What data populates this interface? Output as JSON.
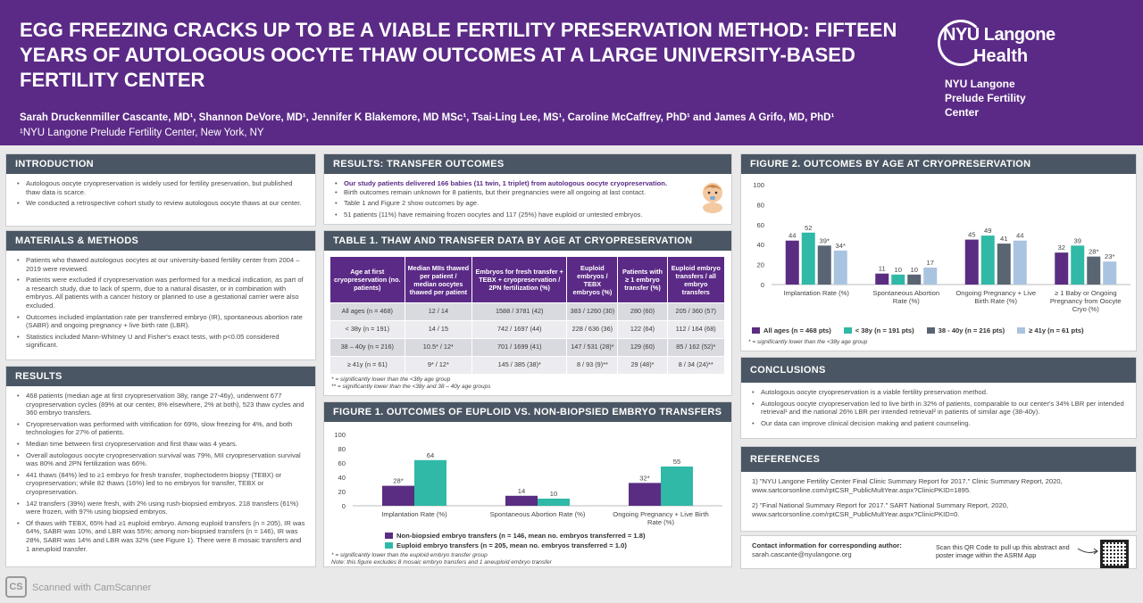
{
  "header": {
    "title": "EGG FREEZING CRACKS UP TO BE A VIABLE FERTILITY PRESERVATION METHOD: FIFTEEN YEARS OF AUTOLOGOUS OOCYTE THAW OUTCOMES AT A LARGE UNIVERSITY-BASED FERTILITY CENTER",
    "authors": "Sarah Druckenmiller Cascante, MD¹, Shannon DeVore, MD¹, Jennifer K Blakemore, MD MSc¹, Tsai-Ling Lee, MS¹, Caroline McCaffrey, PhD¹ and James A Grifo, MD, PhD¹",
    "affiliation": "¹NYU Langone Prelude Fertility Center, New York, NY",
    "logo_line1": "NYU Langone",
    "logo_line2": "Health",
    "logo_sub": "NYU Langone Prelude Fertility Center"
  },
  "intro": {
    "heading": "INTRODUCTION",
    "items": [
      "Autologous oocyte cryopreservation is widely used for fertility preservation, but published thaw data is scarce.",
      "We conducted a retrospective cohort study to review autologous oocyte thaws at our center."
    ]
  },
  "methods": {
    "heading": "MATERIALS & METHODS",
    "items": [
      "Patients who thawed autologous oocytes at our university-based fertility center from 2004 – 2019 were reviewed.",
      "Patients were excluded if cryopreservation was performed for a medical indication, as part of a research study, due to lack of sperm, due to a natural disaster, or in combination with embryos. All patients with a cancer history or planned to use a gestational carrier were also excluded.",
      "Outcomes included implantation rate per transferred embryo (IR), spontaneous abortion rate (SABR) and ongoing pregnancy + live birth rate (LBR).",
      "Statistics included Mann-Whitney U and Fisher's exact tests, with p<0.05 considered significant."
    ]
  },
  "results": {
    "heading": "RESULTS",
    "items": [
      "468 patients (median age at first cryopreservation 38y, range 27-46y), underwent 677 cryopreservation cycles (89% at our center, 8% elsewhere, 2% at both), 523 thaw cycles and 360 embryo transfers.",
      "Cryopreservation was performed with vitrification for 69%, slow freezing for 4%, and both technologies for 27% of patients.",
      "Median time between first cryopreservation and first thaw was 4 years.",
      "Overall autologous oocyte cryopreservation survival was 79%, MII cryopreservation survival was 80% and 2PN fertilization was 66%.",
      "441 thaws (84%) led to ≥1 embryo for fresh transfer, trophectoderm biopsy (TEBX) or cryopreservation; while 82 thaws (16%) led to no embryos for transfer, TEBX or cryopreservation.",
      "142 transfers (39%) were fresh, with 2% using rush-biopsied embryos. 218 transfers (61%) were frozen, with 97% using biopsied embryos.",
      "Of thaws with TEBX, 65% had ≥1 euploid embryo. Among euploid transfers (n = 205), IR was 64%, SABR was 10%, and LBR was 55%; among non-biopsied transfers (n = 146), IR was 28%, SABR was 14% and LBR was 32% (see Figure 1). There were 8 mosaic transfers and 1 aneuploid transfer."
    ]
  },
  "transfer": {
    "heading": "RESULTS: TRANSFER OUTCOMES",
    "items": [
      "Our study patients delivered 166 babies (11 twin, 1 triplet) from autologous oocyte cryopreservation.",
      "Birth outcomes remain unknown for 8 patients, but their pregnancies were all ongoing at last contact.",
      "Table 1 and Figure 2 show outcomes by age.",
      "51 patients (11%) have remaining frozen oocytes and 117 (25%) have euploid or untested embryos."
    ]
  },
  "table1": {
    "heading": "TABLE 1. THAW AND TRANSFER DATA BY AGE AT CRYOPRESERVATION",
    "headers": [
      "Age at first cryopreservation (no. patients)",
      "Median MIIs thawed per patient / median oocytes thawed per patient",
      "Embryos for fresh transfer + TEBX + cryopreservation / 2PN fertilization (%)",
      "Euploid embryos / TEBX embryos (%)",
      "Patients with ≥ 1 embryo transfer (%)",
      "Euploid embryo transfers / all embryo transfers"
    ],
    "rows": [
      [
        "All ages (n = 468)",
        "12 / 14",
        "1588 / 3781 (42)",
        "383 / 1260 (30)",
        "280 (60)",
        "205 / 360 (57)"
      ],
      [
        "< 38y (n = 191)",
        "14 / 15",
        "742 / 1697 (44)",
        "228 / 636 (36)",
        "122 (64)",
        "112 / 164 (68)"
      ],
      [
        "38 – 40y (n = 216)",
        "10.5* / 12*",
        "701 / 1699 (41)",
        "147 / 531 (28)*",
        "129 (60)",
        "85 / 162 (52)*"
      ],
      [
        "≥ 41y (n = 61)",
        "9* / 12*",
        "145 / 385 (38)*",
        "8 / 93 (9)**",
        "29 (48)*",
        "8 / 34 (24)**"
      ]
    ],
    "note1": "* = significantly lower than the <38y age group",
    "note2": "** = significantly lower than the <38y and 38 – 40y age groups"
  },
  "figure1": {
    "heading": "FIGURE 1. OUTCOMES OF EUPLOID VS. NON-BIOPSIED EMBRYO TRANSFERS",
    "legend1": "Non-biopsied embryo transfers (n = 146, mean no. embryos transferred = 1.8)",
    "legend2": "Euploid embryo transfers (n = 205, mean no. embryos transferred = 1.0)",
    "note1": "* = significantly lower than the euploid embryo transfer group",
    "note2": "Note: this figure excludes 8 mosaic embryo transfers and 1 aneuploid embryo transfer"
  },
  "figure2": {
    "heading": "FIGURE 2. OUTCOMES BY AGE AT CRYOPRESERVATION",
    "note": "* = significantly lower than the <38y age group"
  },
  "conclusions": {
    "heading": "CONCLUSIONS",
    "items": [
      "Autologous oocyte cryopreservation is a viable fertility preservation method.",
      "Autologous oocyte cryopreservation led to live birth in 32% of patients, comparable to our center's 34% LBR per intended retrieval¹ and the national 26% LBR per intended retrieval² in patients of similar age (38-40y).",
      "Our data can improve clinical decision making and patient counseling."
    ]
  },
  "references": {
    "heading": "REFERENCES",
    "ref1": "1) \"NYU Langone Fertility Center Final Clinic Summary Report for 2017.\" Clinic Summary Report, 2020, www.sartcorsonline.com/rptCSR_PublicMultYear.aspx?ClinicPKID=1895.",
    "ref2": "2) \"Final National Summary Report for 2017.\" SART National Summary Report, 2020, www.sartcorsonline.com/rptCSR_PublicMultYear.aspx?ClinicPKID=0."
  },
  "contact": {
    "label": "Contact information for corresponding author:",
    "email": "sarah.cascante@nyulangone.org",
    "qr_text": "Scan this QR Code to pull up this abstract and poster image within the ASRM App"
  },
  "watermark": "Scanned with CamScanner",
  "colors": {
    "purple": "#5b2a86",
    "header_bar": "#4a5663",
    "teal": "#2fb9a6",
    "dark_purple": "#5a2d82",
    "slate": "#5a6573",
    "light_blue": "#a9c4e0"
  },
  "chart_data": [
    {
      "type": "bar",
      "categories": [
        "Implantation Rate (%)",
        "Spontaneous Abortion Rate (%)",
        "Ongoing Pregnancy + Live Birth Rate (%)"
      ],
      "series": [
        {
          "name": "Non-biopsied embryo transfers (n = 146, mean no. embryos transferred = 1.8)",
          "values": [
            28,
            14,
            32
          ],
          "labels": [
            "28*",
            "14",
            "32*"
          ]
        },
        {
          "name": "Euploid embryo transfers (n = 205, mean no. embryos transferred = 1.0)",
          "values": [
            64,
            10,
            55
          ],
          "labels": [
            "64",
            "10",
            "55"
          ]
        }
      ],
      "ylim": [
        0,
        100
      ],
      "yticks": [
        "0",
        "20",
        "40",
        "60",
        "80",
        "100"
      ]
    },
    {
      "type": "bar",
      "categories": [
        "Implantation Rate (%)",
        "Spontaneous Abortion Rate (%)",
        "Ongoing Pregnancy + Live Birth Rate (%)",
        "≥ 1 Baby or Ongoing Pregnancy from Oocyte Cryo (%)"
      ],
      "series": [
        {
          "name": "All ages (n = 468 pts)",
          "values": [
            44,
            11,
            45,
            32
          ],
          "labels": [
            "44",
            "11",
            "45",
            "32"
          ]
        },
        {
          "name": "< 38y (n = 191 pts)",
          "values": [
            52,
            10,
            49,
            39
          ],
          "labels": [
            "52",
            "10",
            "49",
            "39"
          ]
        },
        {
          "name": "38 - 40y (n = 216 pts)",
          "values": [
            39,
            10,
            41,
            28
          ],
          "labels": [
            "39*",
            "10",
            "41",
            "28*"
          ]
        },
        {
          "name": "≥ 41y (n = 61 pts)",
          "values": [
            34,
            17,
            44,
            23
          ],
          "labels": [
            "34*",
            "17",
            "44",
            "23*"
          ]
        }
      ],
      "ylim": [
        0,
        100
      ],
      "yticks": [
        "0",
        "20",
        "40",
        "60",
        "80",
        "100"
      ]
    }
  ]
}
